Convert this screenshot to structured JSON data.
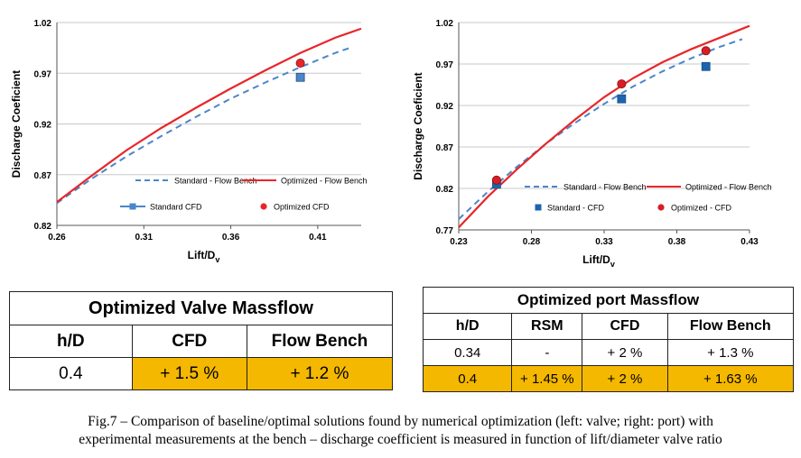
{
  "chart_data": [
    {
      "type": "line",
      "xlabel": "Lift/D",
      "xlabel_sub": "v",
      "ylabel": "Discharge Coeficient",
      "xlim": [
        0.26,
        0.435
      ],
      "ylim": [
        0.82,
        1.02
      ],
      "xticks": [
        "0.26",
        "0.31",
        "0.36",
        "0.41"
      ],
      "yticks": [
        "0.82",
        "0.87",
        "0.92",
        "0.97",
        "1.02"
      ],
      "grid": true,
      "legend_position": "bottom-right",
      "series": [
        {
          "name": "Standard - Flow Bench",
          "style": "dashed",
          "color": "#4a86c8",
          "x": [
            0.26,
            0.28,
            0.3,
            0.32,
            0.34,
            0.36,
            0.38,
            0.4,
            0.42,
            0.43
          ],
          "y": [
            0.842,
            0.866,
            0.888,
            0.908,
            0.927,
            0.945,
            0.961,
            0.976,
            0.99,
            0.996
          ]
        },
        {
          "name": "Optimized - Flow Bench",
          "style": "solid",
          "color": "#e8262a",
          "x": [
            0.26,
            0.28,
            0.3,
            0.32,
            0.34,
            0.36,
            0.38,
            0.4,
            0.42,
            0.435
          ],
          "y": [
            0.843,
            0.869,
            0.894,
            0.916,
            0.936,
            0.955,
            0.973,
            0.99,
            1.005,
            1.014
          ]
        },
        {
          "name": "Standard CFD",
          "style": "marker-square",
          "color": "#4a86c8",
          "x": [
            0.4
          ],
          "y": [
            0.966
          ]
        },
        {
          "name": "Optimized CFD",
          "style": "marker-circle",
          "color": "#e8262a",
          "x": [
            0.4
          ],
          "y": [
            0.98
          ]
        }
      ]
    },
    {
      "type": "line",
      "xlabel": "Lift/D",
      "xlabel_sub": "v",
      "ylabel": "Discharge Coeficient",
      "xlim": [
        0.23,
        0.43
      ],
      "ylim": [
        0.77,
        1.02
      ],
      "xticks": [
        "0.23",
        "0.28",
        "0.33",
        "0.38",
        "0.43"
      ],
      "yticks": [
        "0.77",
        "0.82",
        "0.87",
        "0.92",
        "0.97",
        "1.02"
      ],
      "grid": true,
      "legend_position": "bottom-right",
      "series": [
        {
          "name": "Standard - Flow Bench",
          "style": "dashed",
          "color": "#4a86c8",
          "x": [
            0.23,
            0.25,
            0.27,
            0.29,
            0.31,
            0.33,
            0.35,
            0.37,
            0.39,
            0.41,
            0.425
          ],
          "y": [
            0.783,
            0.816,
            0.846,
            0.874,
            0.899,
            0.922,
            0.943,
            0.961,
            0.977,
            0.991,
            1.0
          ]
        },
        {
          "name": "Optimized - Flow Bench",
          "style": "solid",
          "color": "#e8262a",
          "x": [
            0.23,
            0.25,
            0.27,
            0.29,
            0.31,
            0.33,
            0.35,
            0.37,
            0.39,
            0.41,
            0.43
          ],
          "y": [
            0.773,
            0.81,
            0.843,
            0.874,
            0.903,
            0.93,
            0.953,
            0.972,
            0.988,
            1.002,
            1.016
          ]
        },
        {
          "name": "Standard - CFD",
          "style": "marker-square",
          "color": "#1a64b0",
          "x": [
            0.256,
            0.342,
            0.4
          ],
          "y": [
            0.825,
            0.928,
            0.967
          ]
        },
        {
          "name": "Optimized - CFD",
          "style": "marker-circle",
          "color": "#d81e24",
          "x": [
            0.256,
            0.342,
            0.4
          ],
          "y": [
            0.83,
            0.946,
            0.986
          ]
        }
      ]
    }
  ],
  "table_valve": {
    "title": "Optimized Valve Massflow",
    "headers": [
      "h/D",
      "CFD",
      "Flow Bench"
    ],
    "rows": [
      [
        "0.4",
        "+ 1.5 %",
        "+ 1.2 %"
      ]
    ],
    "highlight_color": "#f5b800"
  },
  "table_port": {
    "title": "Optimized port Massflow",
    "headers": [
      "h/D",
      "RSM",
      "CFD",
      "Flow Bench"
    ],
    "rows": [
      [
        "0.34",
        "-",
        "+ 2 %",
        "+ 1.3 %"
      ],
      [
        "0.4",
        "+ 1.45 %",
        "+ 2 %",
        "+ 1.63 %"
      ]
    ],
    "highlight_color": "#f5b800"
  },
  "caption": {
    "line1": "Fig.7 – Comparison of baseline/optimal solutions found by numerical optimization (left: valve; right: port) with",
    "line2": "experimental measurements at the bench – discharge coefficient is measured in function of lift/diameter valve ratio"
  }
}
